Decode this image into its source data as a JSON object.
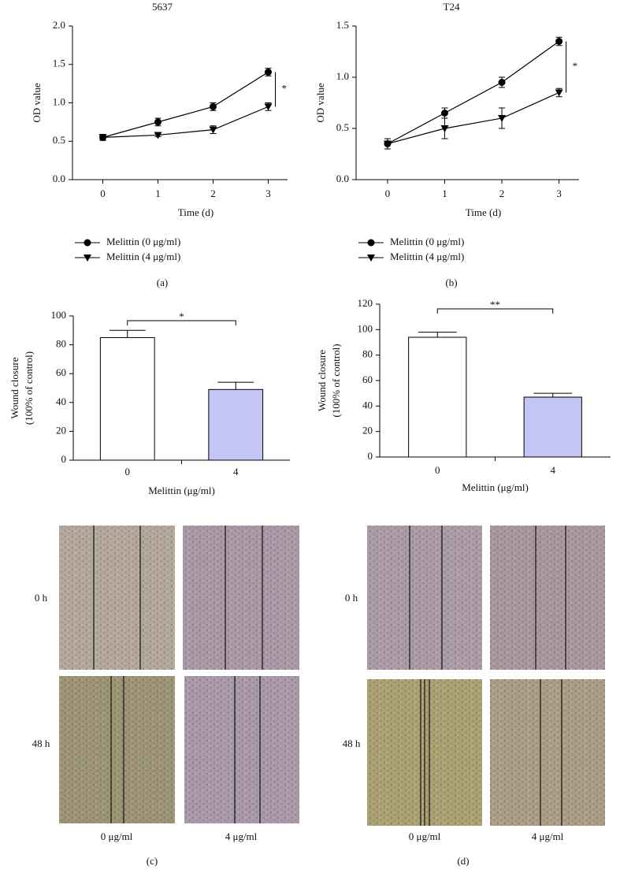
{
  "chart_data": [
    {
      "type": "line",
      "title": "5637",
      "xlabel": "Time (d)",
      "ylabel": "OD value",
      "x": [
        0,
        1,
        2,
        3
      ],
      "xlim": [
        -0.55,
        3.35
      ],
      "xticks": [
        0,
        1,
        2,
        3
      ],
      "ylim": [
        0,
        2
      ],
      "yticks": [
        {
          "value": 0,
          "label": "0.0"
        },
        {
          "value": 0.5,
          "label": "0.5"
        },
        {
          "value": 1,
          "label": "1.0"
        },
        {
          "value": 1.5,
          "label": "1.5"
        },
        {
          "value": 2,
          "label": "2.0"
        }
      ],
      "series": [
        {
          "name": "Melittin (0 μg/ml)",
          "color": "#000000",
          "marker": "circle",
          "values": [
            0.55,
            0.75,
            0.95,
            1.4
          ],
          "errors": [
            0.04,
            0.05,
            0.05,
            0.05
          ]
        },
        {
          "name": "Melittin (4 μg/ml)",
          "color": "#000000",
          "marker": "triangle-down",
          "values": [
            0.55,
            0.58,
            0.65,
            0.95
          ],
          "errors": [
            0.03,
            0.02,
            0.05,
            0.05
          ]
        }
      ],
      "significance": "*",
      "panel_label": "(a)"
    },
    {
      "type": "line",
      "title": "T24",
      "xlabel": "Time (d)",
      "ylabel": "OD value",
      "x": [
        0,
        1,
        2,
        3
      ],
      "xlim": [
        -0.55,
        3.35
      ],
      "xticks": [
        0,
        1,
        2,
        3
      ],
      "ylim": [
        0,
        1.5
      ],
      "yticks": [
        {
          "value": 0,
          "label": "0.0"
        },
        {
          "value": 0.5,
          "label": "0.5"
        },
        {
          "value": 1,
          "label": "1.0"
        },
        {
          "value": 1.5,
          "label": "1.5"
        }
      ],
      "series": [
        {
          "name": "Melittin (0 μg/ml)",
          "color": "#000000",
          "marker": "circle",
          "values": [
            0.35,
            0.65,
            0.95,
            1.35
          ],
          "errors": [
            0.05,
            0.05,
            0.05,
            0.04
          ]
        },
        {
          "name": "Melittin (4 μg/ml)",
          "color": "#000000",
          "marker": "triangle-down",
          "values": [
            0.35,
            0.5,
            0.6,
            0.85
          ],
          "errors": [
            0.05,
            0.1,
            0.1,
            0.04
          ]
        }
      ],
      "significance": "*",
      "panel_label": "(b)"
    },
    {
      "type": "bar",
      "xlabel": "Melittin (μg/ml)",
      "ylabel": [
        "Wound closure",
        "(100% of control)"
      ],
      "categories": [
        "0",
        "4"
      ],
      "values": [
        85,
        49
      ],
      "errors": [
        5,
        5
      ],
      "colors": [
        "#ffffff",
        "#c5c5f5"
      ],
      "ylim": [
        0,
        100
      ],
      "yticks": [
        0,
        20,
        40,
        60,
        80,
        100
      ],
      "significance": "*"
    },
    {
      "type": "bar",
      "xlabel": "Melittin (μg/ml)",
      "ylabel": [
        "Wound closure",
        "(100% of control)"
      ],
      "categories": [
        "0",
        "4"
      ],
      "values": [
        94,
        47
      ],
      "errors": [
        4,
        3
      ],
      "colors": [
        "#ffffff",
        "#c5c5f5"
      ],
      "ylim": [
        0,
        120
      ],
      "yticks": [
        0,
        20,
        40,
        60,
        80,
        100,
        120
      ],
      "significance": "**"
    }
  ],
  "images": {
    "row_labels": [
      "0 h",
      "48 h"
    ],
    "column_labels": [
      "0 μg/ml",
      "4 μg/ml"
    ],
    "panel_labels": [
      "(c)",
      "(d)"
    ]
  }
}
